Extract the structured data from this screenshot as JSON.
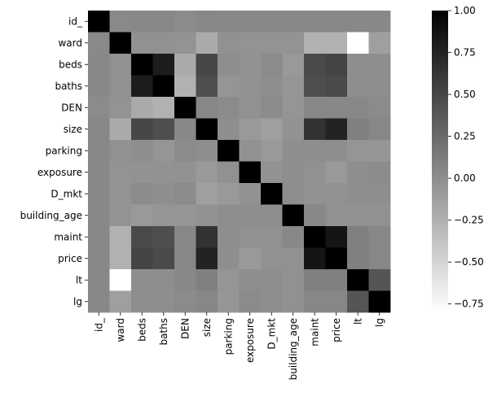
{
  "chart_data": {
    "type": "heatmap",
    "title": "",
    "xlabel": "",
    "ylabel": "",
    "labels": [
      "id_",
      "ward",
      "beds",
      "baths",
      "DEN",
      "size",
      "parking",
      "exposure",
      "D_mkt",
      "building_age",
      "maint",
      "price",
      "lt",
      "lg"
    ],
    "matrix": [
      [
        1.0,
        0.03,
        0.04,
        0.04,
        0.02,
        0.05,
        0.04,
        0.04,
        0.04,
        0.04,
        0.04,
        0.04,
        0.04,
        0.04
      ],
      [
        0.03,
        1.0,
        -0.02,
        -0.02,
        -0.04,
        -0.2,
        -0.02,
        -0.04,
        -0.04,
        -0.04,
        -0.25,
        -0.25,
        -0.8,
        -0.12
      ],
      [
        0.04,
        -0.02,
        1.0,
        0.8,
        -0.2,
        0.5,
        0.0,
        -0.03,
        0.02,
        -0.08,
        0.48,
        0.52,
        0.0,
        0.0
      ],
      [
        0.04,
        -0.02,
        0.8,
        1.0,
        -0.25,
        0.45,
        -0.05,
        -0.03,
        0.0,
        -0.05,
        0.45,
        0.48,
        0.0,
        0.0
      ],
      [
        0.02,
        -0.04,
        -0.2,
        -0.25,
        1.0,
        0.05,
        0.02,
        -0.02,
        0.02,
        -0.05,
        0.05,
        0.05,
        0.04,
        0.02
      ],
      [
        0.05,
        -0.2,
        0.5,
        0.45,
        0.05,
        1.0,
        0.0,
        -0.08,
        -0.12,
        -0.03,
        0.65,
        0.75,
        0.1,
        0.05
      ],
      [
        0.04,
        -0.02,
        0.0,
        -0.05,
        0.02,
        0.0,
        1.0,
        -0.02,
        -0.08,
        0.0,
        0.0,
        0.0,
        -0.05,
        -0.06
      ],
      [
        0.04,
        -0.04,
        -0.03,
        -0.03,
        -0.02,
        -0.08,
        -0.02,
        1.0,
        -0.03,
        0.0,
        -0.02,
        -0.08,
        0.0,
        0.02
      ],
      [
        0.04,
        -0.04,
        0.02,
        0.0,
        0.02,
        -0.12,
        -0.08,
        -0.03,
        1.0,
        0.0,
        -0.02,
        -0.02,
        0.0,
        0.0
      ],
      [
        0.04,
        -0.04,
        -0.08,
        -0.05,
        -0.05,
        -0.03,
        0.0,
        0.0,
        0.0,
        1.0,
        0.04,
        -0.02,
        -0.02,
        -0.02
      ],
      [
        0.04,
        -0.25,
        0.48,
        0.45,
        0.05,
        0.65,
        0.0,
        -0.02,
        -0.02,
        0.04,
        1.0,
        0.85,
        0.1,
        0.05
      ],
      [
        0.04,
        -0.25,
        0.52,
        0.48,
        0.05,
        0.75,
        0.0,
        -0.08,
        -0.02,
        -0.02,
        0.85,
        1.0,
        0.1,
        0.05
      ],
      [
        0.04,
        -0.8,
        0.0,
        0.0,
        0.04,
        0.1,
        -0.05,
        0.0,
        0.0,
        -0.02,
        0.1,
        0.1,
        1.0,
        0.4
      ],
      [
        0.04,
        -0.12,
        0.0,
        0.0,
        0.02,
        0.05,
        -0.06,
        0.02,
        0.0,
        -0.02,
        0.05,
        0.05,
        0.4,
        1.0
      ]
    ],
    "colorbar": {
      "min": -0.8,
      "max": 1.0,
      "ticks": [
        1.0,
        0.75,
        0.5,
        0.25,
        0.0,
        -0.25,
        -0.5,
        -0.75
      ],
      "tick_labels": [
        "1.00",
        "0.75",
        "0.50",
        "0.25",
        "0.00",
        "−0.25",
        "−0.50",
        "−0.75"
      ],
      "low_color": "#ffffff",
      "high_color": "#000000"
    },
    "grid": false
  }
}
